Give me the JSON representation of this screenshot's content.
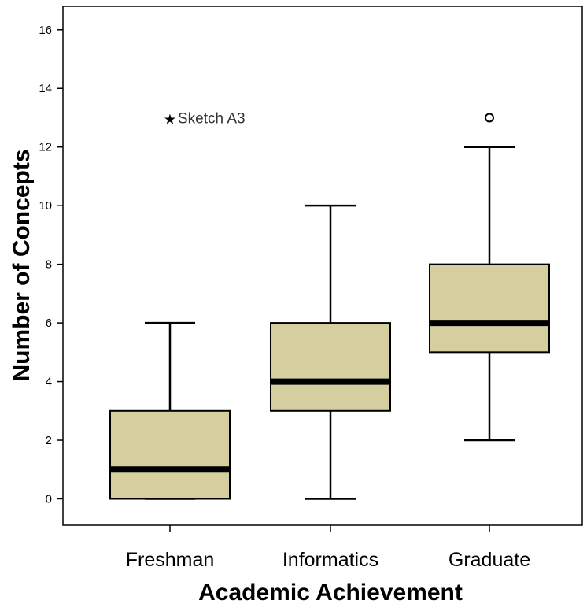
{
  "chart_data": {
    "type": "box",
    "xlabel": "Academic Achievement",
    "ylabel": "Number of Concepts",
    "ylim": [
      -0.9,
      16.8
    ],
    "yticks": [
      0,
      2,
      4,
      6,
      8,
      10,
      12,
      14,
      16
    ],
    "grid": false,
    "legend": "none",
    "box_color": "#d5cf9f",
    "line_color": "#000000",
    "categories": [
      "Freshman",
      "Informatics",
      "Graduate"
    ],
    "boxes": [
      {
        "category": "Freshman",
        "min": 0,
        "q1": 0,
        "median": 1,
        "q3": 3,
        "max": 6,
        "outliers": [],
        "extremes": [
          {
            "value": 13,
            "label": "Sketch A3"
          }
        ]
      },
      {
        "category": "Informatics",
        "min": 0,
        "q1": 3,
        "median": 4,
        "q3": 6,
        "max": 10,
        "outliers": [],
        "extremes": []
      },
      {
        "category": "Graduate",
        "min": 2,
        "q1": 5,
        "median": 6,
        "q3": 8,
        "max": 12,
        "outliers": [
          {
            "value": 13,
            "label": ""
          }
        ],
        "extremes": []
      }
    ]
  }
}
